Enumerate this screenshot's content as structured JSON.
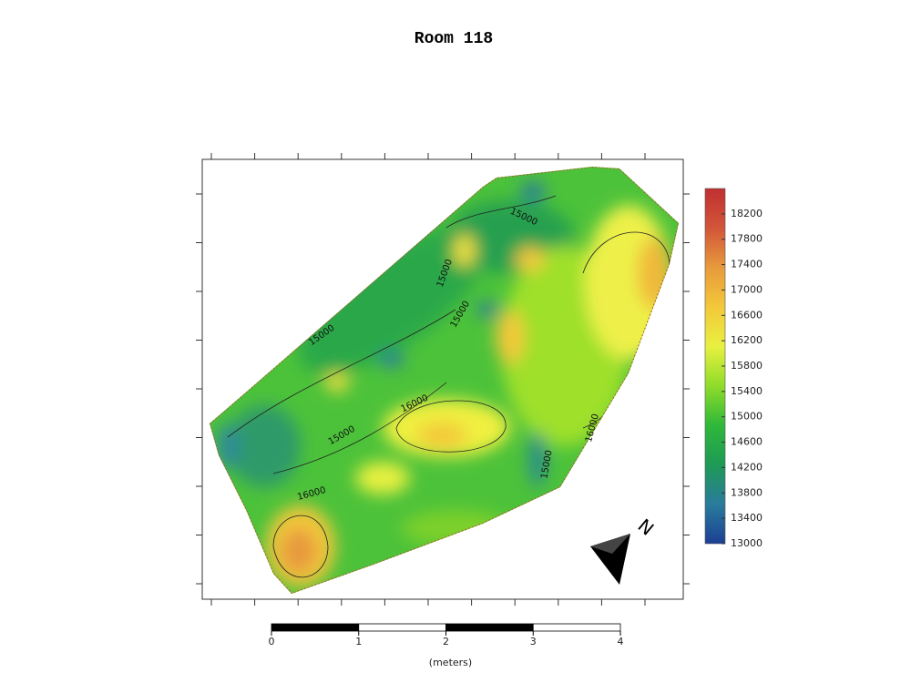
{
  "title": "Room 118",
  "colorbar": {
    "lim": [
      13000,
      18600
    ],
    "ticks": [
      13000,
      13400,
      13800,
      14200,
      14600,
      15000,
      15400,
      15800,
      16200,
      16600,
      17000,
      17400,
      17800,
      18200
    ],
    "colors": [
      "#1c3f94",
      "#2a7c9c",
      "#1e9a55",
      "#2fb83a",
      "#8fdc2a",
      "#e8f040",
      "#f3c83a",
      "#e79a3c",
      "#d2553a",
      "#c03030"
    ]
  },
  "contour_labels": [
    "15000",
    "15000",
    "15000",
    "15000",
    "16000",
    "15000",
    "16000",
    "16000",
    "15000"
  ],
  "north_label": "N",
  "scale_bar": {
    "ticks": [
      0,
      1,
      2,
      3,
      4
    ],
    "unit_label": "(meters)"
  }
}
